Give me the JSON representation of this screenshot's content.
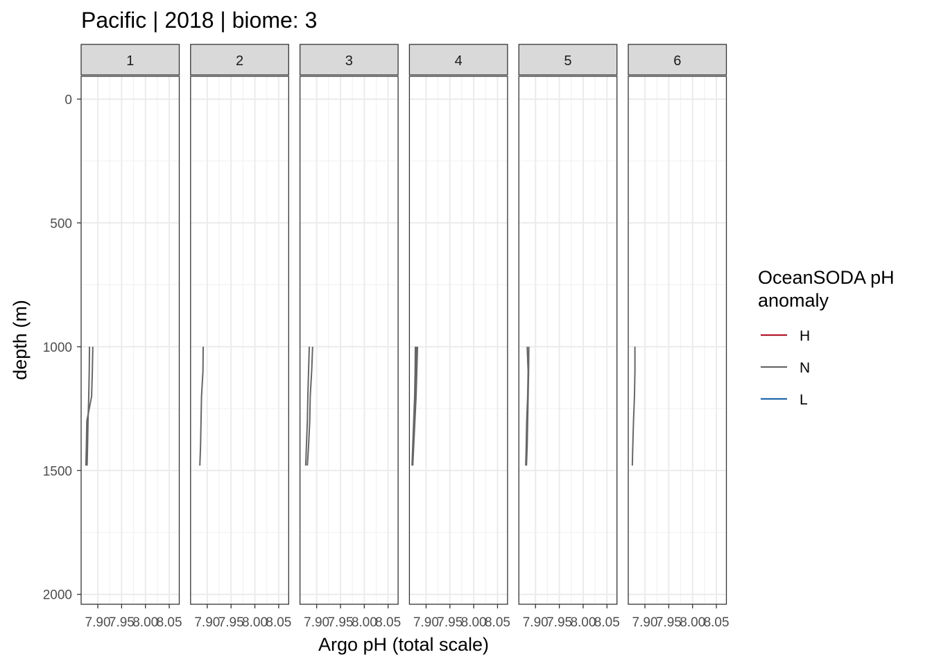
{
  "chart_data": {
    "type": "line",
    "title": "Pacific | 2018 | biome: 3",
    "xlabel": "Argo pH (total scale)",
    "ylabel": "depth (m)",
    "x_ticks": [
      7.9,
      7.95,
      8.0,
      8.05
    ],
    "x_tick_labels": [
      "7.90",
      "7.95",
      "8.00",
      "8.05"
    ],
    "xlim": [
      7.865,
      8.071
    ],
    "y_ticks": [
      0,
      500,
      1000,
      1500,
      2000
    ],
    "y_tick_labels": [
      "0",
      "500",
      "1000",
      "1500",
      "2000"
    ],
    "ylim": [
      2040,
      -92
    ],
    "y_reversed": true,
    "grid": true,
    "legend": {
      "title": "OceanSODA pH\nanomaly",
      "position": "right",
      "entries": [
        {
          "label": "H",
          "color": "#B2182B"
        },
        {
          "label": "N",
          "color": "#666666"
        },
        {
          "label": "L",
          "color": "#2166AC"
        }
      ]
    },
    "panels": [
      {
        "label": "1",
        "series": [
          {
            "group": "N",
            "points": [
              [
                7.8825,
                1000
              ],
              [
                7.882,
                1100
              ],
              [
                7.881,
                1200
              ],
              [
                7.8795,
                1300
              ],
              [
                7.8785,
                1400
              ],
              [
                7.8775,
                1480
              ]
            ]
          },
          {
            "group": "N",
            "points": [
              [
                7.8895,
                1000
              ],
              [
                7.8885,
                1100
              ],
              [
                7.887,
                1200
              ],
              [
                7.877,
                1300
              ],
              [
                7.876,
                1400
              ],
              [
                7.875,
                1480
              ]
            ]
          }
        ]
      },
      {
        "label": "2",
        "series": [
          {
            "group": "N",
            "points": [
              [
                7.8915,
                1000
              ],
              [
                7.891,
                1100
              ],
              [
                7.888,
                1200
              ],
              [
                7.887,
                1300
              ],
              [
                7.886,
                1400
              ],
              [
                7.8845,
                1480
              ]
            ]
          }
        ]
      },
      {
        "label": "3",
        "series": [
          {
            "group": "N",
            "points": [
              [
                7.8915,
                1000
              ],
              [
                7.8895,
                1100
              ],
              [
                7.8865,
                1200
              ],
              [
                7.8855,
                1300
              ],
              [
                7.883,
                1400
              ],
              [
                7.8805,
                1480
              ]
            ]
          },
          {
            "group": "N",
            "points": [
              [
                7.8845,
                1000
              ],
              [
                7.883,
                1100
              ],
              [
                7.8815,
                1200
              ],
              [
                7.8805,
                1300
              ],
              [
                7.8785,
                1400
              ],
              [
                7.877,
                1480
              ]
            ]
          }
        ]
      },
      {
        "label": "4",
        "series": [
          {
            "group": "N",
            "points": [
              [
                7.8775,
                1000
              ],
              [
                7.877,
                1100
              ],
              [
                7.876,
                1200
              ],
              [
                7.874,
                1300
              ],
              [
                7.872,
                1400
              ],
              [
                7.8705,
                1480
              ]
            ]
          },
          {
            "group": "N",
            "points": [
              [
                7.882,
                1000
              ],
              [
                7.8805,
                1100
              ],
              [
                7.879,
                1200
              ],
              [
                7.8765,
                1300
              ],
              [
                7.874,
                1400
              ],
              [
                7.872,
                1480
              ]
            ]
          },
          {
            "group": "N",
            "points": [
              [
                7.8795,
                1000
              ],
              [
                7.8785,
                1100
              ],
              [
                7.8775,
                1200
              ],
              [
                7.8755,
                1300
              ],
              [
                7.873,
                1400
              ],
              [
                7.871,
                1480
              ]
            ]
          }
        ]
      },
      {
        "label": "5",
        "series": [
          {
            "group": "N",
            "points": [
              [
                7.886,
                1000
              ],
              [
                7.8855,
                1100
              ],
              [
                7.8845,
                1200
              ],
              [
                7.8835,
                1300
              ],
              [
                7.8825,
                1400
              ],
              [
                7.881,
                1480
              ]
            ]
          },
          {
            "group": "N",
            "points": [
              [
                7.8825,
                1000
              ],
              [
                7.8845,
                1100
              ],
              [
                7.8835,
                1200
              ],
              [
                7.8815,
                1300
              ],
              [
                7.8805,
                1400
              ],
              [
                7.8795,
                1480
              ]
            ]
          }
        ]
      },
      {
        "label": "6",
        "series": [
          {
            "group": "N",
            "points": [
              [
                7.879,
                1000
              ],
              [
                7.879,
                1100
              ],
              [
                7.878,
                1200
              ],
              [
                7.876,
                1300
              ],
              [
                7.8745,
                1400
              ],
              [
                7.8735,
                1480
              ]
            ]
          }
        ]
      }
    ]
  }
}
